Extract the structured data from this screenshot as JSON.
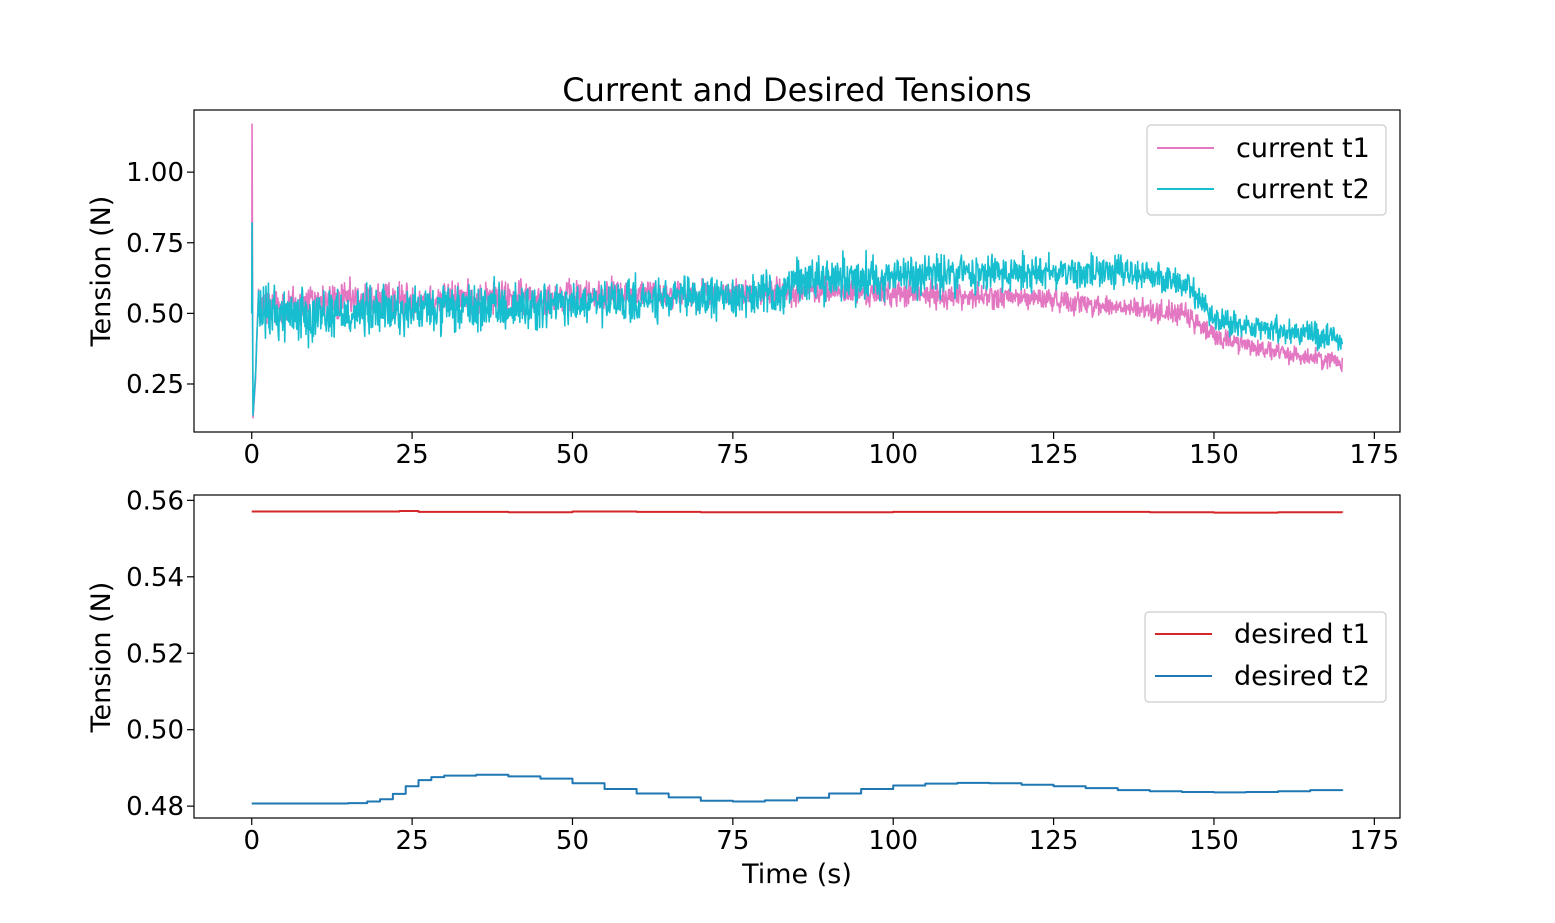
{
  "figure": {
    "title": "Current and Desired Tensions"
  },
  "chart_data": [
    {
      "type": "line",
      "title": "Current and Desired Tensions",
      "xlabel": "",
      "ylabel": "Tension (N)",
      "xlim": [
        -9,
        179
      ],
      "ylim": [
        0.08,
        1.22
      ],
      "xticks": [
        0,
        25,
        50,
        75,
        100,
        125,
        150,
        175
      ],
      "yticks": [
        0.25,
        0.5,
        0.75,
        1.0
      ],
      "ytick_labels": [
        "0.25",
        "0.50",
        "0.75",
        "1.00"
      ],
      "legend_position": "top-right",
      "series_note": "dense noisy signals sampled from 0 to 170 s",
      "series": [
        {
          "name": "current t1",
          "color": "#e377c2",
          "x": [
            0,
            0.1,
            0.3,
            1,
            5,
            10,
            25,
            50,
            60,
            75,
            85,
            100,
            125,
            135,
            145,
            150,
            160,
            170
          ],
          "y_center": [
            0.5,
            1.17,
            0.13,
            0.52,
            0.53,
            0.54,
            0.55,
            0.56,
            0.57,
            0.57,
            0.58,
            0.57,
            0.55,
            0.52,
            0.5,
            0.42,
            0.36,
            0.33
          ],
          "y_amplitude": [
            0.1,
            0,
            0,
            0.1,
            0.09,
            0.09,
            0.08,
            0.07,
            0.07,
            0.06,
            0.06,
            0.06,
            0.05,
            0.05,
            0.05,
            0.05,
            0.04,
            0.04
          ]
        },
        {
          "name": "current t2",
          "color": "#17becf",
          "x": [
            0,
            0.1,
            0.3,
            1,
            5,
            10,
            25,
            50,
            75,
            83,
            85,
            100,
            110,
            125,
            140,
            146,
            150,
            160,
            170
          ],
          "y_center": [
            0.5,
            0.82,
            0.14,
            0.5,
            0.5,
            0.5,
            0.51,
            0.53,
            0.56,
            0.57,
            0.62,
            0.63,
            0.64,
            0.65,
            0.64,
            0.6,
            0.47,
            0.44,
            0.41
          ],
          "y_amplitude": [
            0.13,
            0,
            0,
            0.12,
            0.12,
            0.12,
            0.11,
            0.1,
            0.09,
            0.09,
            0.1,
            0.1,
            0.1,
            0.09,
            0.07,
            0.06,
            0.06,
            0.06,
            0.06
          ]
        }
      ]
    },
    {
      "type": "line",
      "title": "",
      "xlabel": "Time (s)",
      "ylabel": "Tension (N)",
      "xlim": [
        -9,
        179
      ],
      "ylim": [
        0.4769,
        0.5614
      ],
      "xticks": [
        0,
        25,
        50,
        75,
        100,
        125,
        150,
        175
      ],
      "yticks": [
        0.48,
        0.5,
        0.52,
        0.54,
        0.56
      ],
      "ytick_labels": [
        "0.48",
        "0.50",
        "0.52",
        "0.54",
        "0.56"
      ],
      "legend_position": "center-right",
      "series": [
        {
          "name": "desired t1",
          "color": "#d62728",
          "x": [
            0,
            10,
            20,
            23,
            26,
            30,
            40,
            50,
            60,
            70,
            80,
            100,
            120,
            140,
            150,
            160,
            170
          ],
          "y": [
            0.5571,
            0.5571,
            0.5571,
            0.5572,
            0.557,
            0.557,
            0.5569,
            0.5571,
            0.557,
            0.5569,
            0.5569,
            0.557,
            0.557,
            0.5569,
            0.5568,
            0.5569,
            0.5568
          ]
        },
        {
          "name": "desired t2",
          "color": "#1f77b4",
          "x": [
            0,
            5,
            10,
            15,
            18,
            20,
            22,
            24,
            26,
            28,
            30,
            35,
            40,
            45,
            50,
            55,
            60,
            65,
            70,
            75,
            80,
            85,
            90,
            95,
            100,
            105,
            110,
            115,
            120,
            125,
            130,
            135,
            140,
            145,
            150,
            155,
            160,
            165,
            170
          ],
          "y": [
            0.4807,
            0.4807,
            0.4807,
            0.4808,
            0.4812,
            0.4818,
            0.4832,
            0.4852,
            0.4868,
            0.4876,
            0.488,
            0.4882,
            0.4878,
            0.4872,
            0.486,
            0.4845,
            0.4833,
            0.4823,
            0.4814,
            0.4812,
            0.4815,
            0.4822,
            0.4833,
            0.4845,
            0.4854,
            0.4859,
            0.4861,
            0.486,
            0.4856,
            0.4852,
            0.4847,
            0.4842,
            0.4839,
            0.4837,
            0.4836,
            0.4837,
            0.4839,
            0.4842,
            0.4844
          ]
        }
      ]
    }
  ]
}
